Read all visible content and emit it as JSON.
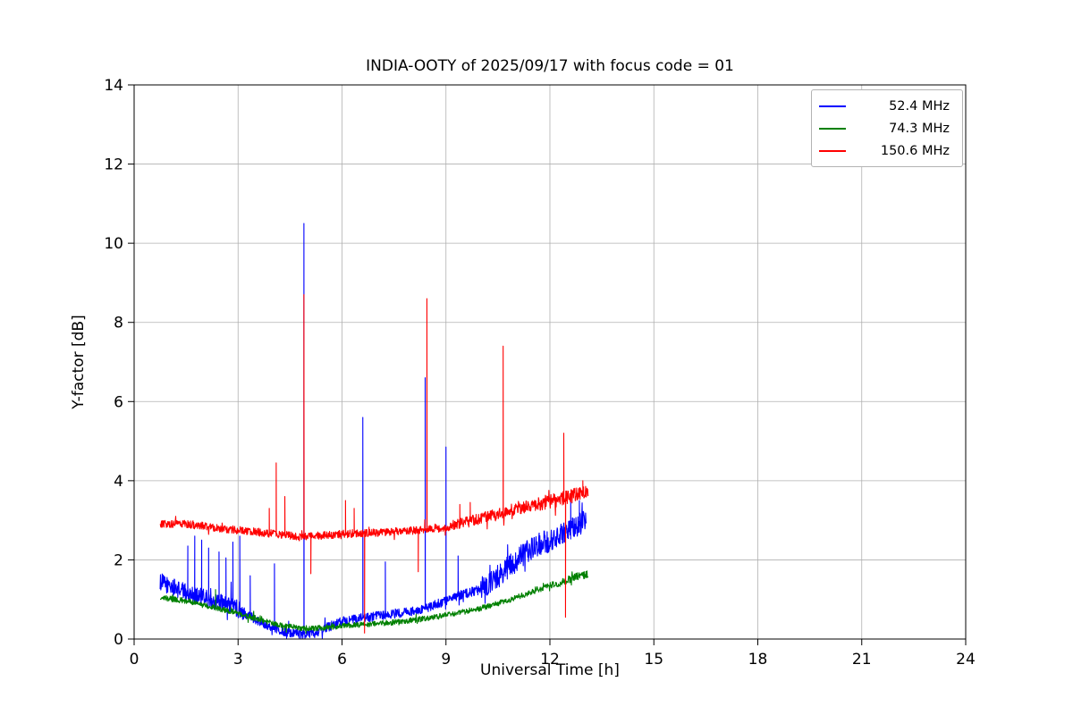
{
  "chart_data": {
    "type": "line",
    "title": "INDIA-OOTY of 2025/09/17 with focus code = 01",
    "xlabel": "Universal Time [h]",
    "ylabel": "Y-factor [dB]",
    "xlim": [
      0,
      24
    ],
    "ylim": [
      0,
      14
    ],
    "xticks": [
      0,
      3,
      6,
      9,
      12,
      15,
      18,
      21,
      24
    ],
    "yticks": [
      0,
      2,
      4,
      6,
      8,
      10,
      12,
      14
    ],
    "grid": true,
    "grid_color": "#b0b0b0",
    "legend_position": "top-right",
    "series": [
      {
        "name": "52.4 MHz",
        "color": "#0000ff",
        "x_range": [
          0.75,
          13.05
        ],
        "noise": 0.12,
        "noise_regions": [
          {
            "x0": 0.75,
            "x1": 3.2,
            "amp": 0.22
          },
          {
            "x0": 10.0,
            "x1": 13.05,
            "amp": 0.3
          }
        ],
        "base": [
          [
            0.75,
            1.45
          ],
          [
            1.0,
            1.35
          ],
          [
            1.3,
            1.25
          ],
          [
            1.6,
            1.15
          ],
          [
            2.0,
            1.05
          ],
          [
            2.4,
            0.95
          ],
          [
            2.8,
            0.85
          ],
          [
            3.0,
            0.75
          ],
          [
            3.3,
            0.6
          ],
          [
            3.6,
            0.45
          ],
          [
            4.0,
            0.3
          ],
          [
            4.4,
            0.18
          ],
          [
            4.8,
            0.12
          ],
          [
            5.2,
            0.15
          ],
          [
            5.6,
            0.3
          ],
          [
            6.0,
            0.45
          ],
          [
            6.4,
            0.5
          ],
          [
            6.8,
            0.55
          ],
          [
            7.2,
            0.6
          ],
          [
            7.6,
            0.65
          ],
          [
            8.0,
            0.7
          ],
          [
            8.4,
            0.75
          ],
          [
            8.8,
            0.9
          ],
          [
            9.2,
            1.05
          ],
          [
            9.6,
            1.15
          ],
          [
            10.0,
            1.25
          ],
          [
            10.4,
            1.5
          ],
          [
            10.8,
            1.8
          ],
          [
            11.2,
            2.1
          ],
          [
            11.6,
            2.35
          ],
          [
            12.0,
            2.5
          ],
          [
            12.4,
            2.65
          ],
          [
            12.8,
            2.85
          ],
          [
            13.05,
            3.0
          ]
        ],
        "spikes": [
          [
            1.55,
            2.35
          ],
          [
            1.75,
            2.6
          ],
          [
            1.95,
            2.5
          ],
          [
            2.15,
            2.3
          ],
          [
            2.45,
            2.2
          ],
          [
            2.65,
            2.05
          ],
          [
            2.85,
            2.45
          ],
          [
            3.05,
            2.6
          ],
          [
            3.35,
            1.6
          ],
          [
            4.05,
            1.9
          ],
          [
            4.9,
            10.5
          ],
          [
            6.6,
            5.6
          ],
          [
            7.25,
            1.95
          ],
          [
            8.4,
            6.6
          ],
          [
            9.0,
            4.85
          ],
          [
            9.35,
            2.1
          ],
          [
            12.6,
            3.6
          ],
          [
            12.85,
            3.5
          ]
        ],
        "dips": []
      },
      {
        "name": "74.3 MHz",
        "color": "#008000",
        "x_range": [
          0.75,
          13.1
        ],
        "noise": 0.07,
        "noise_regions": [
          {
            "x0": 12.0,
            "x1": 13.1,
            "amp": 0.1
          }
        ],
        "base": [
          [
            0.75,
            1.05
          ],
          [
            1.2,
            1.0
          ],
          [
            1.6,
            0.95
          ],
          [
            2.0,
            0.85
          ],
          [
            2.4,
            0.78
          ],
          [
            2.8,
            0.7
          ],
          [
            3.2,
            0.6
          ],
          [
            3.6,
            0.5
          ],
          [
            4.0,
            0.4
          ],
          [
            4.4,
            0.33
          ],
          [
            4.8,
            0.28
          ],
          [
            5.2,
            0.27
          ],
          [
            5.6,
            0.3
          ],
          [
            6.0,
            0.33
          ],
          [
            6.4,
            0.36
          ],
          [
            6.8,
            0.38
          ],
          [
            7.2,
            0.4
          ],
          [
            7.6,
            0.43
          ],
          [
            8.0,
            0.47
          ],
          [
            8.4,
            0.52
          ],
          [
            8.8,
            0.57
          ],
          [
            9.2,
            0.63
          ],
          [
            9.6,
            0.7
          ],
          [
            10.0,
            0.78
          ],
          [
            10.4,
            0.88
          ],
          [
            10.8,
            0.98
          ],
          [
            11.2,
            1.1
          ],
          [
            11.6,
            1.22
          ],
          [
            12.0,
            1.35
          ],
          [
            12.4,
            1.45
          ],
          [
            12.8,
            1.58
          ],
          [
            13.1,
            1.65
          ]
        ],
        "spikes": [
          [
            2.35,
            1.25
          ]
        ],
        "dips": []
      },
      {
        "name": "150.6 MHz",
        "color": "#ff0000",
        "x_range": [
          0.75,
          13.1
        ],
        "noise": 0.1,
        "noise_regions": [
          {
            "x0": 9.2,
            "x1": 11.5,
            "amp": 0.15
          },
          {
            "x0": 11.5,
            "x1": 13.1,
            "amp": 0.18
          }
        ],
        "base": [
          [
            0.75,
            2.9
          ],
          [
            1.2,
            2.92
          ],
          [
            1.6,
            2.9
          ],
          [
            2.0,
            2.85
          ],
          [
            2.4,
            2.8
          ],
          [
            2.8,
            2.77
          ],
          [
            3.2,
            2.73
          ],
          [
            3.6,
            2.7
          ],
          [
            4.0,
            2.66
          ],
          [
            4.4,
            2.62
          ],
          [
            4.8,
            2.58
          ],
          [
            5.2,
            2.6
          ],
          [
            5.6,
            2.63
          ],
          [
            6.0,
            2.65
          ],
          [
            6.4,
            2.67
          ],
          [
            6.8,
            2.68
          ],
          [
            7.2,
            2.7
          ],
          [
            7.6,
            2.72
          ],
          [
            8.0,
            2.74
          ],
          [
            8.4,
            2.77
          ],
          [
            8.8,
            2.8
          ],
          [
            9.2,
            2.85
          ],
          [
            9.6,
            2.95
          ],
          [
            10.0,
            3.05
          ],
          [
            10.4,
            3.15
          ],
          [
            10.8,
            3.25
          ],
          [
            11.2,
            3.32
          ],
          [
            11.6,
            3.4
          ],
          [
            12.0,
            3.48
          ],
          [
            12.4,
            3.55
          ],
          [
            12.8,
            3.65
          ],
          [
            13.1,
            3.7
          ]
        ],
        "spikes": [
          [
            3.9,
            3.3
          ],
          [
            4.1,
            4.45
          ],
          [
            4.35,
            3.6
          ],
          [
            4.9,
            8.7
          ],
          [
            6.1,
            3.5
          ],
          [
            6.35,
            3.3
          ],
          [
            8.45,
            8.6
          ],
          [
            9.4,
            3.4
          ],
          [
            9.7,
            3.45
          ],
          [
            10.65,
            7.4
          ],
          [
            12.4,
            5.2
          ],
          [
            12.95,
            4.0
          ]
        ],
        "dips": [
          [
            5.1,
            1.65
          ],
          [
            6.65,
            0.15
          ],
          [
            8.2,
            1.7
          ],
          [
            12.45,
            0.55
          ]
        ]
      }
    ]
  }
}
